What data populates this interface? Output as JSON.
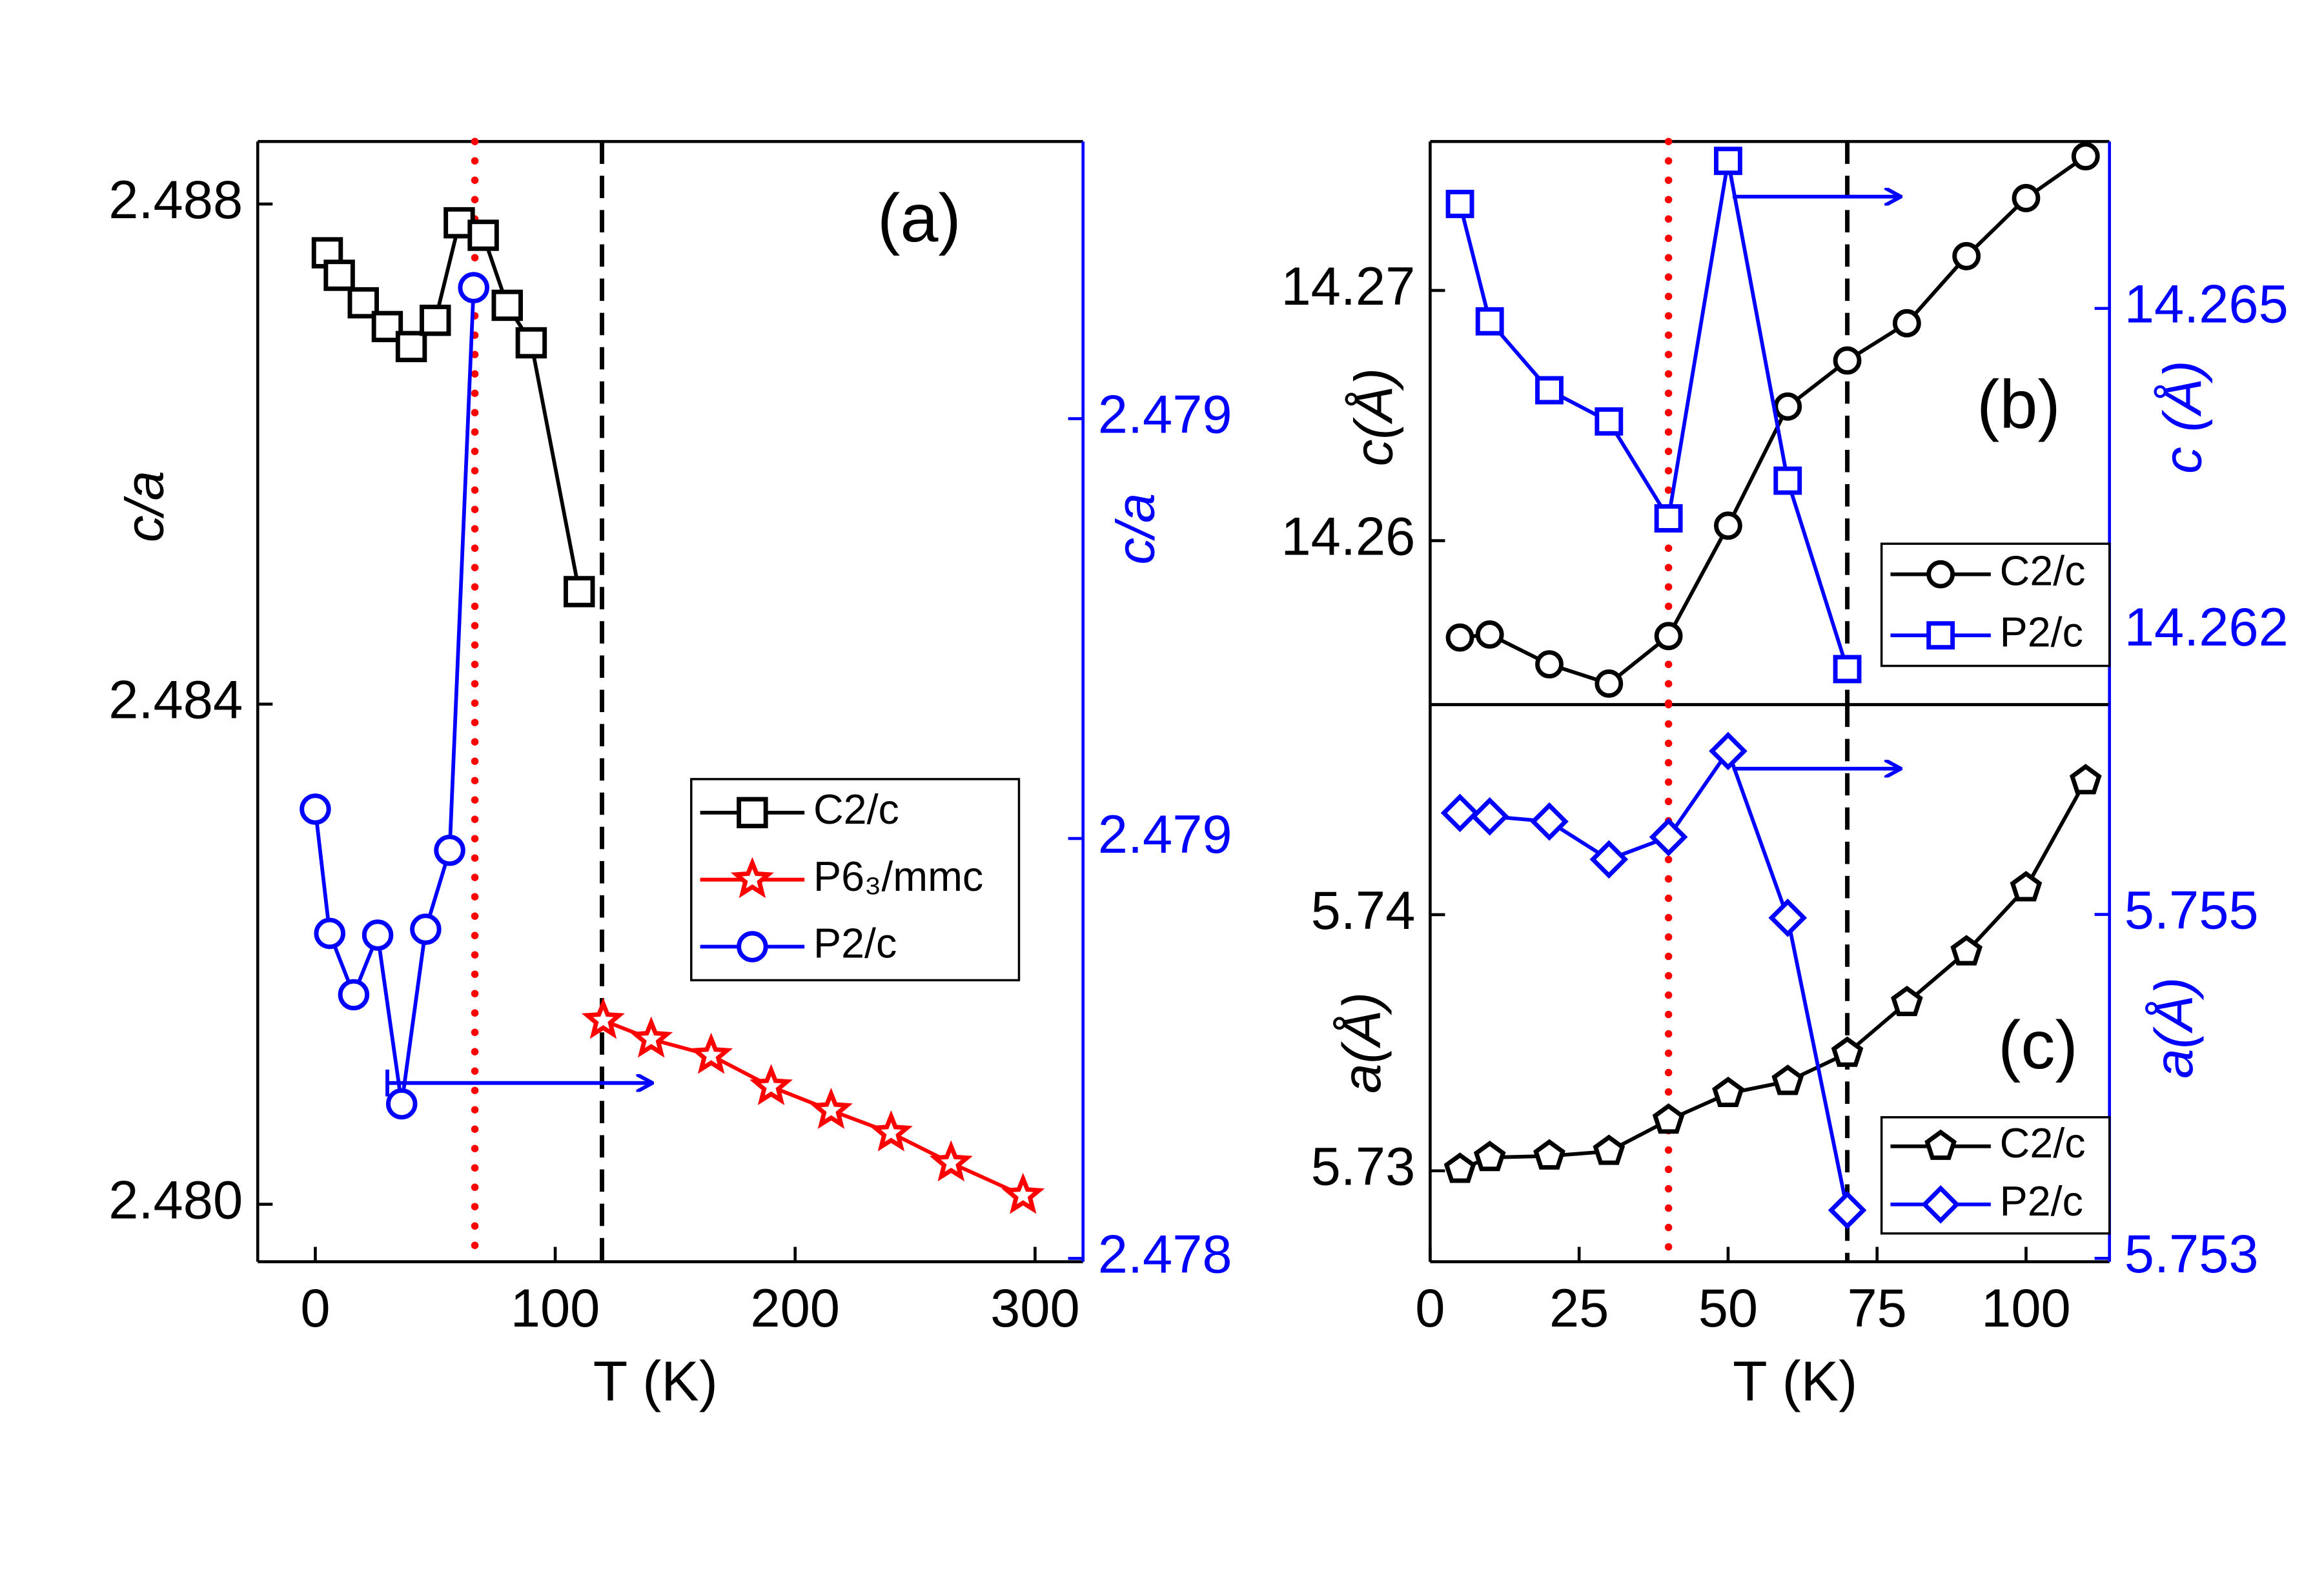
{
  "chart_data": [
    {
      "type": "line",
      "title": "(a)",
      "xlabel": "T (K)",
      "ylabel": "c/a",
      "y2label": "c/a",
      "xlim": [
        -24,
        320
      ],
      "xticks": [
        0,
        100,
        200,
        300
      ],
      "ylim": [
        2.47954,
        2.4885
      ],
      "yticks": [
        2.488,
        2.484,
        {
          "value": 2.48,
          "label": "2.480"
        }
      ],
      "y2lim": [
        2.477996,
        2.47933
      ],
      "y2ticks": [
        2.479,
        {
          "value": 2.4785,
          "label": "2.479"
        },
        2.478
      ],
      "reference_lines": [
        {
          "x": 66.5,
          "color": "#ff0000",
          "style": "dotted"
        },
        {
          "x": 119.5,
          "color": "#000000",
          "style": "dashed"
        }
      ],
      "series": [
        {
          "name": "C2/c",
          "color": "#000000",
          "marker": "square",
          "axis": "y",
          "x": [
            5,
            10,
            20,
            30,
            40,
            50,
            60,
            70,
            80,
            90,
            110
          ],
          "values": [
            2.48761,
            2.48743,
            2.48721,
            2.48702,
            2.48686,
            2.48707,
            2.48785,
            2.48775,
            2.48719,
            2.48689,
            2.4849
          ]
        },
        {
          "name": "P6₃/mmc",
          "color": "#ff0000",
          "marker": "star",
          "axis": "y",
          "x": [
            120,
            140,
            165,
            190,
            215,
            240,
            265,
            295
          ],
          "values": [
            2.48147,
            2.48132,
            2.48119,
            2.48094,
            2.48075,
            2.48057,
            2.48033,
            2.48007
          ]
        },
        {
          "name": "P2/c",
          "color": "#0000ff",
          "marker": "circle",
          "axis": "y2",
          "x": [
            0,
            6,
            16,
            26,
            36,
            46,
            56,
            66
          ],
          "values": [
            2.478535,
            2.478387,
            2.478314,
            2.478385,
            2.478184,
            2.478392,
            2.478486,
            2.479156
          ]
        }
      ]
    },
    {
      "type": "line",
      "title": "(b)",
      "ylabel": "c(Å)",
      "y2label": "c (Å)",
      "xlim": [
        0,
        114
      ],
      "ylim": [
        14.25345,
        14.27595
      ],
      "yticks": [
        14.27,
        14.26
      ],
      "y2lim": [
        14.26132,
        14.26655
      ],
      "y2ticks": [
        14.265,
        14.262
      ],
      "reference_lines": [
        {
          "x": 40,
          "color": "#ff0000",
          "style": "dotted"
        },
        {
          "x": 70,
          "color": "#000000",
          "style": "dashed"
        }
      ],
      "series": [
        {
          "name": "C2/c",
          "color": "#000000",
          "marker": "circle",
          "axis": "y",
          "x": [
            5,
            10,
            20,
            30,
            40,
            50,
            60,
            70,
            80,
            90,
            100,
            110
          ],
          "values": [
            14.25613,
            14.25625,
            14.25506,
            14.25429,
            14.25619,
            14.2606,
            14.26536,
            14.2672,
            14.26869,
            14.27137,
            14.27369,
            14.27536
          ]
        },
        {
          "name": "P2/c",
          "color": "#0000ff",
          "marker": "square",
          "axis": "y2",
          "x": [
            5,
            10,
            20,
            30,
            40,
            50,
            60,
            70
          ],
          "values": [
            14.26597,
            14.26488,
            14.26424,
            14.26395,
            14.26305,
            14.26637,
            14.2634,
            14.26165
          ]
        }
      ]
    },
    {
      "type": "line",
      "title": "(c)",
      "xlabel": "T (K)",
      "ylabel": "a(Å)",
      "y2label": "a(Å)",
      "xlim": [
        0,
        114
      ],
      "xticks": [
        0,
        25,
        50,
        75,
        100
      ],
      "ylim": [
        5.72645,
        5.7482
      ],
      "yticks": [
        5.74,
        5.73
      ],
      "y2lim": [
        5.75298,
        5.75622
      ],
      "y2ticks": [
        5.755,
        5.753
      ],
      "reference_lines": [
        {
          "x": 40,
          "color": "#ff0000",
          "style": "dotted"
        },
        {
          "x": 70,
          "color": "#000000",
          "style": "dashed"
        }
      ],
      "series": [
        {
          "name": "C2/c",
          "color": "#000000",
          "marker": "pentagon",
          "axis": "y",
          "x": [
            5,
            10,
            20,
            30,
            40,
            50,
            60,
            70,
            80,
            90,
            100,
            110
          ],
          "values": [
            5.73006,
            5.73052,
            5.73058,
            5.73076,
            5.73198,
            5.73302,
            5.73349,
            5.73459,
            5.73657,
            5.73855,
            5.74105,
            5.74523
          ]
        },
        {
          "name": "P2/c",
          "color": "#0000ff",
          "marker": "diamond",
          "axis": "y2",
          "x": [
            5,
            10,
            20,
            30,
            40,
            50,
            60,
            70
          ],
          "values": [
            5.75559,
            5.75557,
            5.75554,
            5.75532,
            5.75545,
            5.75595,
            5.75498,
            5.75328
          ]
        }
      ]
    }
  ]
}
